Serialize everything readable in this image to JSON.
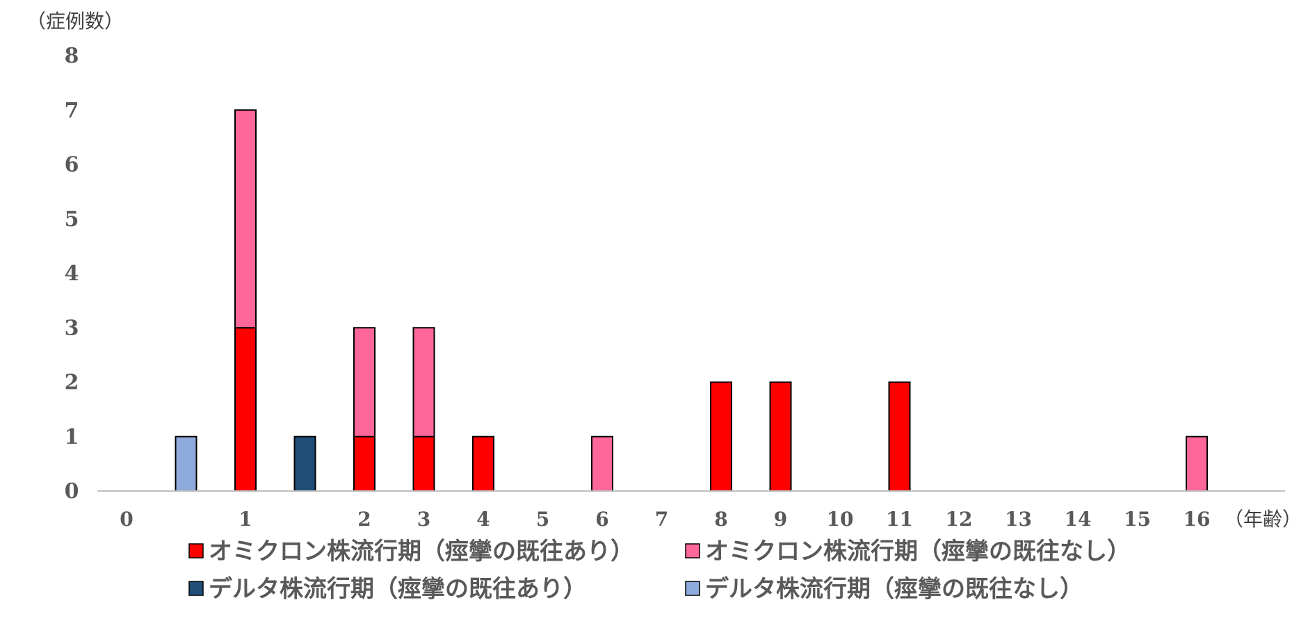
{
  "chart_data": {
    "type": "bar",
    "stacked": true,
    "ylabel": "（症例数）",
    "xlabel": "（年齢）",
    "ylim": [
      0,
      8
    ],
    "yticks": [
      0,
      1,
      2,
      3,
      4,
      5,
      6,
      7,
      8
    ],
    "categories": [
      "0",
      "",
      "1",
      "",
      "2",
      "3",
      "4",
      "5",
      "6",
      "7",
      "8",
      "9",
      "10",
      "11",
      "12",
      "13",
      "14",
      "15",
      "16"
    ],
    "grid": false,
    "legend_position": "bottom",
    "series": [
      {
        "name": "オミクロン株流行期（痙攣の既往あり）",
        "color": "#ff0000",
        "values": [
          0,
          0,
          3,
          0,
          1,
          1,
          1,
          0,
          0,
          0,
          2,
          2,
          0,
          2,
          0,
          0,
          0,
          0,
          0
        ]
      },
      {
        "name": "オミクロン株流行期（痙攣の既往なし）",
        "color": "#ff6699",
        "values": [
          0,
          0,
          4,
          0,
          2,
          2,
          0,
          0,
          1,
          0,
          0,
          0,
          0,
          0,
          0,
          0,
          0,
          0,
          1
        ]
      },
      {
        "name": "デルタ株流行期（痙攣の既往あり）",
        "color": "#1f4e79",
        "values": [
          0,
          0,
          0,
          1,
          0,
          0,
          0,
          0,
          0,
          0,
          0,
          0,
          0,
          0,
          0,
          0,
          0,
          0,
          0
        ]
      },
      {
        "name": "デルタ株流行期（痙攣の既往なし）",
        "color": "#8faadc",
        "values": [
          0,
          1,
          0,
          0,
          0,
          0,
          0,
          0,
          0,
          0,
          0,
          0,
          0,
          0,
          0,
          0,
          0,
          0,
          0
        ]
      }
    ]
  }
}
